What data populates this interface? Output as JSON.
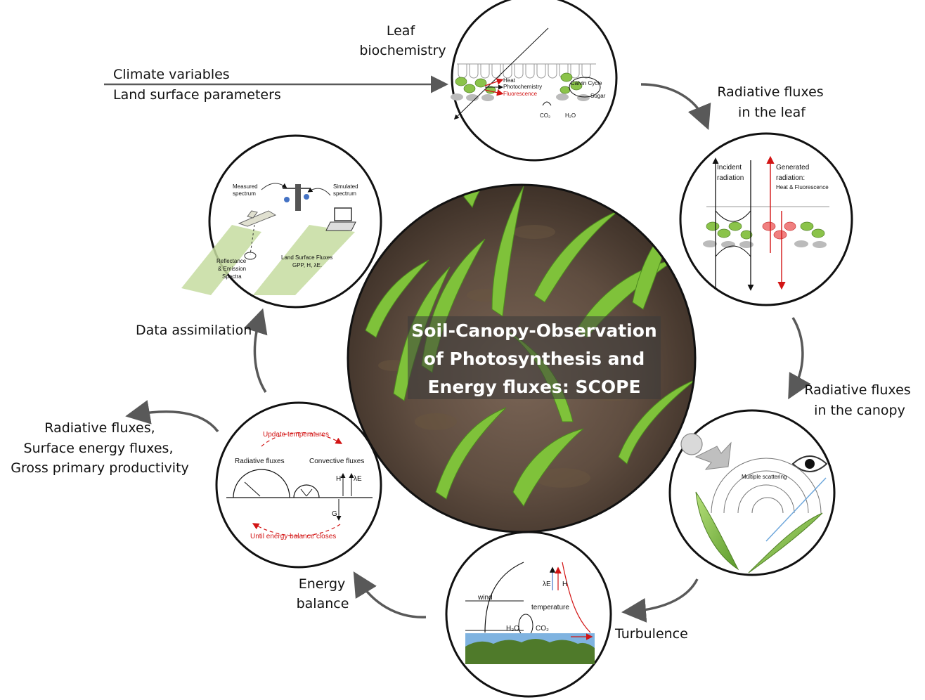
{
  "center": {
    "title_lines": [
      "Soil-Canopy-Observation",
      "of Photosynthesis and",
      "Energy fluxes: SCOPE"
    ]
  },
  "labels": {
    "leaf_biochemistry": [
      "Leaf",
      "biochemistry"
    ],
    "inputs": [
      "Climate variables",
      "Land surface parameters"
    ],
    "radiative_leaf": [
      "Radiative fluxes",
      "in the leaf"
    ],
    "radiative_canopy": [
      "Radiative fluxes",
      "in the canopy"
    ],
    "turbulence": "Turbulence",
    "energy_balance": [
      "Energy",
      "balance"
    ],
    "outputs": [
      "Radiative fluxes,",
      "Surface energy fluxes,",
      "Gross primary productivity"
    ],
    "data_assimilation": "Data assimilation"
  },
  "panels": {
    "leaf": {
      "heat": "Heat",
      "photochemistry": "Photochemistry",
      "fluorescence": "Fluorescence",
      "calvin": "Calvin Cycle",
      "sugar": "Sugar",
      "co2": "CO₂",
      "h2o": "H₂O"
    },
    "leaf_rad": {
      "incident": [
        "Incident",
        "radiation"
      ],
      "generated": [
        "Generated",
        "radiation:",
        "Heat & Fluorescence"
      ]
    },
    "canopy": {
      "multiple": "Multiple scattering"
    },
    "turbulence": {
      "wind": "wind",
      "temperature": "temperature",
      "le": "λE",
      "h": "H",
      "h2o": "H₂O",
      "co2": "CO₂"
    },
    "energy": {
      "update": "Update temperatures",
      "radiative": "Radiative fluxes",
      "convective": "Convective fluxes",
      "h": "H",
      "le": "λE",
      "g": "G",
      "until": "Until energy balance closes"
    },
    "assim": {
      "measured": [
        "Measured",
        "spectrum"
      ],
      "simulated": [
        "Simulated",
        "spectrum"
      ],
      "reflectance": [
        "Reflectance",
        "& Emission",
        "Spectra"
      ],
      "fluxes": [
        "Land Surface Fluxes",
        "GPP, H, λE."
      ]
    }
  },
  "colors": {
    "leaf_green": "#8bc34a",
    "arrow_gray": "#595959",
    "red": "#d21414",
    "soil": "#5c4a3c"
  }
}
